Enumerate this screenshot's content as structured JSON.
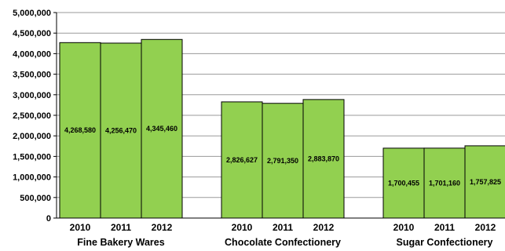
{
  "chart_data": {
    "type": "bar",
    "title": "",
    "xlabel": "",
    "ylabel": "",
    "ylim": [
      0,
      5000000
    ],
    "yticks": [
      0,
      500000,
      1000000,
      1500000,
      2000000,
      2500000,
      3000000,
      3500000,
      4000000,
      4500000,
      5000000
    ],
    "ytick_labels": [
      "0",
      "500,000",
      "1,000,000",
      "1,500,000",
      "2,000,000",
      "2,500,000",
      "3,000,000",
      "3,500,000",
      "4,000,000",
      "4,500,000",
      "5,000,000"
    ],
    "grid": true,
    "legend": "none",
    "bar_color": "#92d050",
    "bar_edge_color": "#000000",
    "groups": [
      {
        "name": "Fine Bakery Wares",
        "categories": [
          "2010",
          "2011",
          "2012"
        ],
        "values": [
          4268580,
          4256470,
          4345460
        ],
        "value_labels": [
          "4,268,580",
          "4,256,470",
          "4,345,460"
        ]
      },
      {
        "name": "Chocolate Confectionery",
        "categories": [
          "2010",
          "2011",
          "2012"
        ],
        "values": [
          2826627,
          2791350,
          2883870
        ],
        "value_labels": [
          "2,826,627",
          "2,791,350",
          "2,883,870"
        ]
      },
      {
        "name": "Sugar Confectionery",
        "categories": [
          "2010",
          "2011",
          "2012"
        ],
        "values": [
          1700455,
          1701160,
          1757825
        ],
        "value_labels": [
          "1,700,455",
          "1,701,160",
          "1,757,825"
        ]
      }
    ]
  }
}
